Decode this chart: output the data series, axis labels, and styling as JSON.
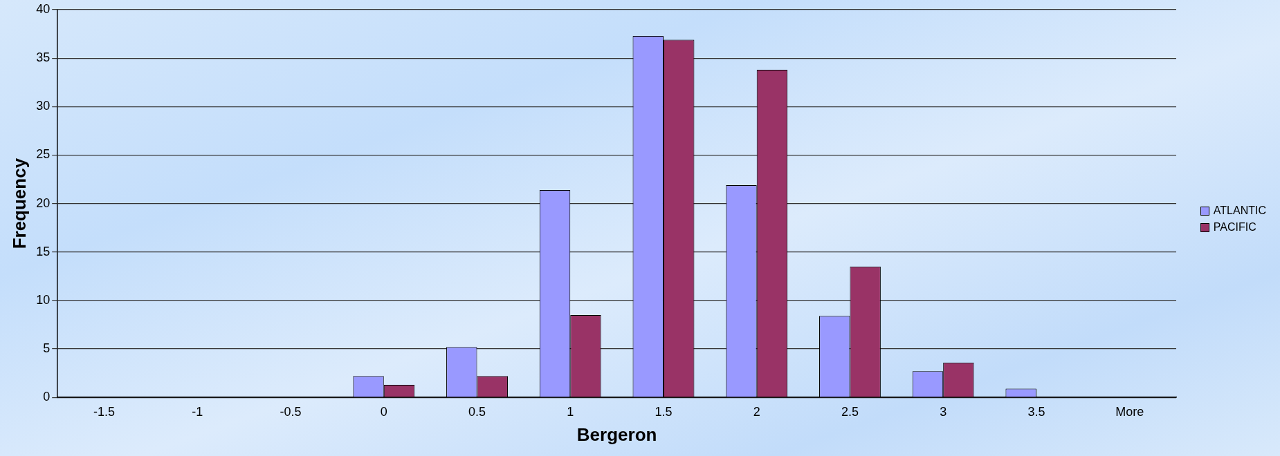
{
  "chart_data": {
    "type": "bar",
    "xlabel": "Bergeron",
    "ylabel": "Frequency",
    "categories": [
      "-1.5",
      "-1",
      "-0.5",
      "0",
      "0.5",
      "1",
      "1.5",
      "2",
      "2.5",
      "3",
      "3.5",
      "More"
    ],
    "series": [
      {
        "name": "ATLANTIC",
        "color": "#9999ff",
        "values": [
          0,
          0,
          0,
          2.2,
          5.2,
          21.4,
          37.3,
          21.9,
          8.4,
          2.7,
          0.9,
          0
        ]
      },
      {
        "name": "PACIFIC",
        "color": "#993366",
        "values": [
          0,
          0,
          0,
          1.3,
          2.2,
          8.5,
          36.9,
          33.8,
          13.5,
          3.6,
          0,
          0
        ]
      }
    ],
    "ylim": [
      0,
      40
    ],
    "yticks": [
      0,
      5,
      10,
      15,
      20,
      25,
      30,
      35,
      40
    ],
    "grid": "y",
    "legend": "right"
  }
}
